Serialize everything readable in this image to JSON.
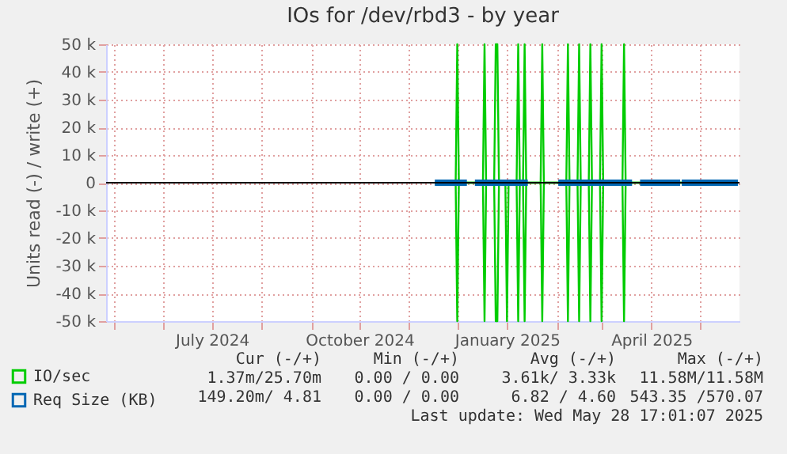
{
  "chart_data": {
    "type": "line",
    "title": "IOs for /dev/rbd3 - by year",
    "ylabel": "Units read (-) / write (+)",
    "xlim": [
      "2024-04-26",
      "2025-05-26"
    ],
    "xticks": [
      {
        "value": "2024-05-01",
        "label": null
      },
      {
        "value": "2024-06-01",
        "label": null
      },
      {
        "value": "2024-07-01",
        "label": "July 2024"
      },
      {
        "value": "2024-08-01",
        "label": null
      },
      {
        "value": "2024-09-01",
        "label": null
      },
      {
        "value": "2024-10-01",
        "label": "October 2024"
      },
      {
        "value": "2024-11-01",
        "label": null
      },
      {
        "value": "2024-12-01",
        "label": null
      },
      {
        "value": "2025-01-01",
        "label": "January 2025"
      },
      {
        "value": "2025-02-01",
        "label": null
      },
      {
        "value": "2025-03-01",
        "label": null
      },
      {
        "value": "2025-04-01",
        "label": "April 2025"
      },
      {
        "value": "2025-05-01",
        "label": null
      }
    ],
    "ylim": [
      -50000,
      50000
    ],
    "yticks": [
      {
        "value": -50000,
        "label": "-50 k"
      },
      {
        "value": -40000,
        "label": "-40 k"
      },
      {
        "value": -30000,
        "label": "-30 k"
      },
      {
        "value": -20000,
        "label": "-20 k"
      },
      {
        "value": -10000,
        "label": "-10 k"
      },
      0,
      {
        "value": 10000,
        "label": "10 k"
      },
      {
        "value": 20000,
        "label": "20 k"
      },
      {
        "value": 30000,
        "label": "30 k"
      },
      {
        "value": 40000,
        "label": "40 k"
      },
      {
        "value": 50000,
        "label": "50 k"
      }
    ],
    "grid": true,
    "legend": "bottom left",
    "x": [
      "2024-11-17",
      "2024-11-30",
      "2024-12-01",
      "2024-12-02",
      "2024-12-17",
      "2024-12-18",
      "2024-12-19",
      "2024-12-24",
      "2024-12-25",
      "2024-12-26",
      "2024-12-27",
      "2024-12-31",
      "2025-01-01",
      "2025-01-02",
      "2025-01-07",
      "2025-01-08",
      "2025-01-09",
      "2025-01-11",
      "2025-01-12",
      "2025-01-13",
      "2025-01-22",
      "2025-01-23",
      "2025-01-24",
      "2025-02-07",
      "2025-02-08",
      "2025-02-09",
      "2025-02-14",
      "2025-02-15",
      "2025-02-16",
      "2025-02-21",
      "2025-02-22",
      "2025-02-23",
      "2025-02-28",
      "2025-03-01",
      "2025-03-02",
      "2025-03-14",
      "2025-03-15",
      "2025-03-16",
      "2025-05-25"
    ],
    "series": [
      {
        "name": "IO/sec",
        "color": "#00cc00",
        "values": [
          0,
          0,
          50000,
          0,
          0,
          50000,
          0,
          0,
          50000,
          50000,
          0,
          0,
          0,
          0,
          0,
          50000,
          0,
          0,
          50000,
          0,
          0,
          50000,
          0,
          0,
          50000,
          0,
          0,
          50000,
          0,
          0,
          50000,
          0,
          0,
          50000,
          0,
          0,
          50000,
          0,
          0
        ]
      },
      {
        "color": "#00cc00",
        "values": [
          0,
          0,
          -50000,
          0,
          0,
          -50000,
          0,
          0,
          -50000,
          -50000,
          0,
          0,
          -50000,
          0,
          0,
          -50000,
          0,
          0,
          -50000,
          0,
          0,
          -50000,
          0,
          0,
          -50000,
          0,
          0,
          -50000,
          0,
          0,
          -50000,
          0,
          0,
          -50000,
          0,
          0,
          -50000,
          0,
          0
        ]
      },
      {
        "name": "Req Size (KB)",
        "color": "#0066b3",
        "x": [
          "2024-11-17",
          "2024-12-07",
          "2024-12-09",
          "2024-12-12",
          "2025-01-14",
          "2025-01-20",
          "2025-02-02",
          "2025-03-20",
          "2025-03-22",
          "2025-03-25",
          "2025-04-19",
          "2025-04-19T12:00",
          "2025-04-20",
          "2025-05-25"
        ],
        "values": [
          0,
          0,
          null,
          0,
          0,
          null,
          0,
          0,
          null,
          0,
          0,
          null,
          0,
          0
        ]
      }
    ],
    "ref_lines": [
      {
        "axis": "y",
        "value": 0,
        "color": "#000000"
      }
    ],
    "annotations": [
      "Cur (-/+)",
      "Min (-/+)",
      "Avg (-/+)",
      "Max (-/+)",
      "1.37m/25.70m",
      "0.00 / 0.00",
      "3.61k/ 3.33k",
      "11.58M/11.58M",
      "149.20m/ 4.81",
      "0.00 / 0.00",
      "6.82 / 4.60",
      "543.35 /570.07",
      "Last update: Wed May 28 17:01:07 2025"
    ]
  }
}
